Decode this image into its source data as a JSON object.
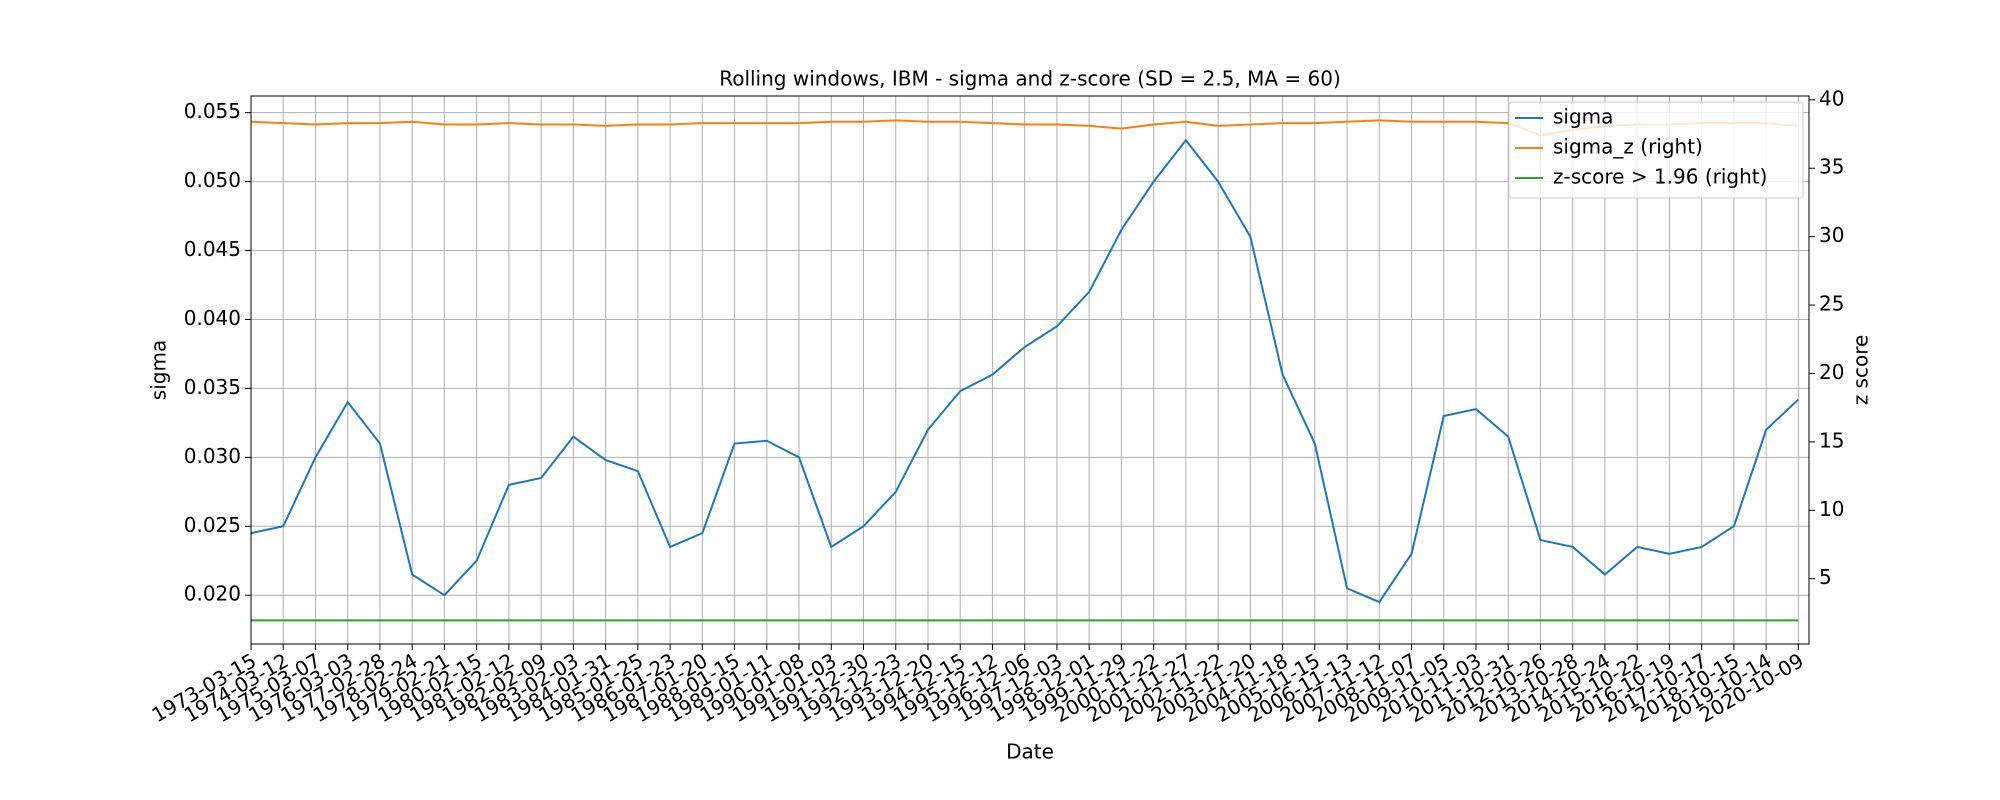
{
  "chart_data": {
    "type": "line",
    "title": "Rolling windows, IBM - sigma and z-score (SD = 2.5, MA = 60)",
    "x_label": "Date",
    "y_label": "sigma",
    "y2_label": "z score",
    "x": [
      "1973-03-15",
      "1974-03-12",
      "1975-03-07",
      "1976-03-03",
      "1977-02-28",
      "1978-02-24",
      "1979-02-21",
      "1980-02-15",
      "1981-02-12",
      "1982-02-09",
      "1983-02-03",
      "1984-01-31",
      "1985-01-25",
      "1986-01-23",
      "1987-01-20",
      "1988-01-15",
      "1989-01-11",
      "1990-01-08",
      "1991-01-03",
      "1991-12-30",
      "1992-12-23",
      "1993-12-20",
      "1994-12-15",
      "1995-12-12",
      "1996-12-06",
      "1997-12-03",
      "1998-12-01",
      "1999-11-29",
      "2000-11-22",
      "2001-11-27",
      "2002-11-22",
      "2003-11-20",
      "2004-11-18",
      "2005-11-15",
      "2006-11-13",
      "2007-11-12",
      "2008-11-07",
      "2009-11-05",
      "2010-11-03",
      "2011-10-31",
      "2012-10-26",
      "2013-10-28",
      "2014-10-24",
      "2015-10-22",
      "2016-10-19",
      "2017-10-17",
      "2018-10-15",
      "2019-10-14",
      "2020-10-09"
    ],
    "series": [
      {
        "name": "sigma",
        "color": "#1f77b4",
        "axis": "y",
        "values": [
          0.0245,
          0.025,
          0.03,
          0.034,
          0.031,
          0.0215,
          0.02,
          0.0225,
          0.028,
          0.0285,
          0.0315,
          0.0298,
          0.029,
          0.0235,
          0.0245,
          0.031,
          0.0312,
          0.03,
          0.0235,
          0.025,
          0.0275,
          0.032,
          0.0348,
          0.036,
          0.038,
          0.0395,
          0.042,
          0.0465,
          0.05,
          0.053,
          0.05,
          0.046,
          0.036,
          0.031,
          0.0205,
          0.0195,
          0.023,
          0.033,
          0.0335,
          0.0315,
          0.024,
          0.0235,
          0.0215,
          0.0235,
          0.023,
          0.0235,
          0.025,
          0.032,
          0.0342
        ]
      },
      {
        "name": "sigma_z (right)",
        "color": "#ff7f0e",
        "axis": "y2",
        "values": [
          38.4,
          38.3,
          38.2,
          38.3,
          38.3,
          38.4,
          38.2,
          38.2,
          38.3,
          38.2,
          38.2,
          38.1,
          38.2,
          38.2,
          38.3,
          38.3,
          38.3,
          38.3,
          38.4,
          38.4,
          38.5,
          38.4,
          38.4,
          38.3,
          38.2,
          38.2,
          38.1,
          37.9,
          38.2,
          38.4,
          38.1,
          38.2,
          38.3,
          38.3,
          38.4,
          38.5,
          38.4,
          38.4,
          38.4,
          38.3,
          37.4,
          37.8,
          38.1,
          38.2,
          38.2,
          38.3,
          38.3,
          38.3,
          38.1
        ]
      },
      {
        "name": "z-score > 1.96 (right)",
        "color": "#2ca02c",
        "axis": "y2",
        "values": [
          1.96,
          1.96,
          1.96,
          1.96,
          1.96,
          1.96,
          1.96,
          1.96,
          1.96,
          1.96,
          1.96,
          1.96,
          1.96,
          1.96,
          1.96,
          1.96,
          1.96,
          1.96,
          1.96,
          1.96,
          1.96,
          1.96,
          1.96,
          1.96,
          1.96,
          1.96,
          1.96,
          1.96,
          1.96,
          1.96,
          1.96,
          1.96,
          1.96,
          1.96,
          1.96,
          1.96,
          1.96,
          1.96,
          1.96,
          1.96,
          1.96,
          1.96,
          1.96,
          1.96,
          1.96,
          1.96,
          1.96,
          1.96,
          1.96
        ]
      }
    ],
    "ylim": [
      0.01646,
      0.05621
    ],
    "yticks": [
      {
        "value": 0.02,
        "label": "0.020"
      },
      {
        "value": 0.025,
        "label": "0.025"
      },
      {
        "value": 0.03,
        "label": "0.030"
      },
      {
        "value": 0.035,
        "label": "0.035"
      },
      {
        "value": 0.04,
        "label": "0.040"
      },
      {
        "value": 0.045,
        "label": "0.045"
      },
      {
        "value": 0.05,
        "label": "0.050"
      },
      {
        "value": 0.055,
        "label": "0.055"
      }
    ],
    "y2lim": [
      0.23,
      40.28
    ],
    "y2ticks": [
      5,
      10,
      15,
      20,
      25,
      30,
      35,
      40
    ],
    "grid": true,
    "legend": "upper right"
  }
}
